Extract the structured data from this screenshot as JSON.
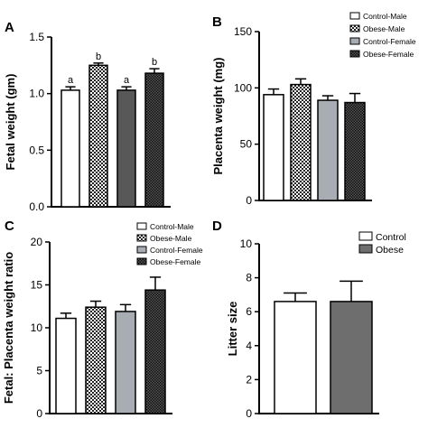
{
  "chart_data": [
    {
      "panel": "A",
      "type": "bar",
      "ylabel": "Fetal weight (gm)",
      "ylim": [
        0,
        1.5
      ],
      "yticks": [
        0.0,
        0.5,
        1.0,
        1.5
      ],
      "ytick_labels": [
        "0.0",
        "0.5",
        "1.0",
        "1.5"
      ],
      "categories": [
        "Control-Male",
        "Obese-Male",
        "Control-Female",
        "Obese-Female"
      ],
      "values": [
        1.03,
        1.25,
        1.03,
        1.18
      ],
      "errors": [
        0.03,
        0.02,
        0.03,
        0.04
      ],
      "annotations": [
        "a",
        "b",
        "a",
        "b"
      ],
      "legend": null
    },
    {
      "panel": "B",
      "type": "bar",
      "ylabel": "Placenta weight (mg)",
      "ylim": [
        0,
        150
      ],
      "yticks": [
        0,
        50,
        100,
        150
      ],
      "ytick_labels": [
        "0",
        "50",
        "100",
        "150"
      ],
      "categories": [
        "Control-Male",
        "Obese-Male",
        "Control-Female",
        "Obese-Female"
      ],
      "values": [
        94,
        103,
        89,
        87
      ],
      "errors": [
        5,
        5,
        4,
        8
      ],
      "annotations": null,
      "legend": [
        "Control-Male",
        "Obese-Male",
        "Control-Female",
        "Obese-Female"
      ]
    },
    {
      "panel": "C",
      "type": "bar",
      "ylabel": "Fetal: Placenta weight ratio",
      "ylim": [
        0,
        20
      ],
      "yticks": [
        0,
        5,
        10,
        15,
        20
      ],
      "ytick_labels": [
        "0",
        "5",
        "10",
        "15",
        "20"
      ],
      "categories": [
        "Control-Male",
        "Obese-Male",
        "Control-Female",
        "Obese-Female"
      ],
      "values": [
        11.1,
        12.4,
        11.9,
        14.4
      ],
      "errors": [
        0.6,
        0.7,
        0.8,
        1.5
      ],
      "annotations": null,
      "legend": [
        "Control-Male",
        "Obese-Male",
        "Control-Female",
        "Obese-Female"
      ]
    },
    {
      "panel": "D",
      "type": "bar",
      "ylabel": "Litter size",
      "ylim": [
        0,
        10
      ],
      "yticks": [
        0,
        2,
        4,
        6,
        8,
        10
      ],
      "ytick_labels": [
        "0",
        "2",
        "4",
        "6",
        "8",
        "10"
      ],
      "categories": [
        "Control",
        "Obese"
      ],
      "values": [
        6.6,
        6.6
      ],
      "errors": [
        0.5,
        1.2
      ],
      "annotations": null,
      "legend": [
        "Control",
        "Obese"
      ]
    }
  ]
}
